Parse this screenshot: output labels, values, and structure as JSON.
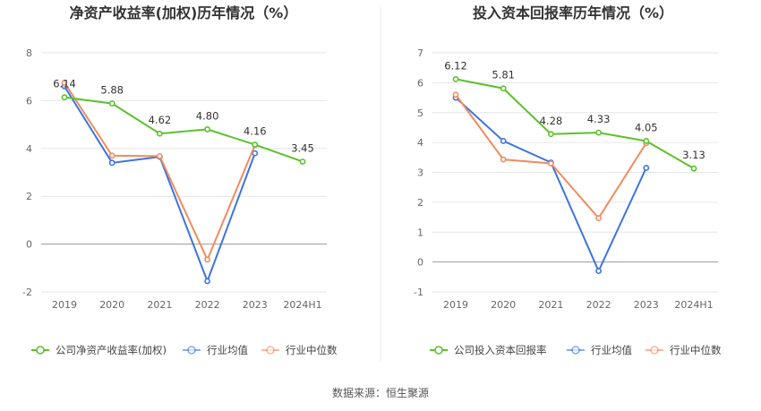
{
  "colors": {
    "company": "#5cc12a",
    "industry_avg": "#3d74e0",
    "industry_median": "#f08c5e",
    "grid": "#e6e6e6",
    "axis": "#999999"
  },
  "source_text": "数据来源：恒生聚源",
  "chart_data": [
    {
      "type": "line",
      "title": "净资产收益率(加权)历年情况（%）",
      "categories": [
        "2019",
        "2020",
        "2021",
        "2022",
        "2023",
        "2024H1"
      ],
      "ylim": [
        -2,
        8
      ],
      "yticks": [
        -2,
        0,
        2,
        4,
        6,
        8
      ],
      "grid": true,
      "legend_position": "bottom",
      "series": [
        {
          "name": "公司净资产收益率(加权)",
          "color_key": "company",
          "values": [
            6.14,
            5.88,
            4.62,
            4.8,
            4.16,
            3.45
          ],
          "labels": [
            "6.14",
            "5.88",
            "4.62",
            "4.80",
            "4.16",
            "3.45"
          ]
        },
        {
          "name": "行业均值",
          "color_key": "industry_avg",
          "values": [
            6.6,
            3.4,
            3.65,
            -1.55,
            3.8,
            null
          ]
        },
        {
          "name": "行业中位数",
          "color_key": "industry_median",
          "values": [
            6.75,
            3.7,
            3.68,
            -0.65,
            4.15,
            null
          ]
        }
      ]
    },
    {
      "type": "line",
      "title": "投入资本回报率历年情况（%）",
      "categories": [
        "2019",
        "2020",
        "2021",
        "2022",
        "2023",
        "2024H1"
      ],
      "ylim": [
        -1,
        7
      ],
      "yticks": [
        -1,
        0,
        1,
        2,
        3,
        4,
        5,
        6,
        7
      ],
      "grid": true,
      "legend_position": "bottom",
      "series": [
        {
          "name": "公司投入资本回报率",
          "color_key": "company",
          "values": [
            6.12,
            5.81,
            4.28,
            4.33,
            4.05,
            3.13
          ],
          "labels": [
            "6.12",
            "5.81",
            "4.28",
            "4.33",
            "4.05",
            "3.13"
          ]
        },
        {
          "name": "行业均值",
          "color_key": "industry_avg",
          "values": [
            5.5,
            4.05,
            3.33,
            -0.3,
            3.15,
            null
          ]
        },
        {
          "name": "行业中位数",
          "color_key": "industry_median",
          "values": [
            5.6,
            3.43,
            3.3,
            1.47,
            3.98,
            null
          ]
        }
      ]
    }
  ]
}
